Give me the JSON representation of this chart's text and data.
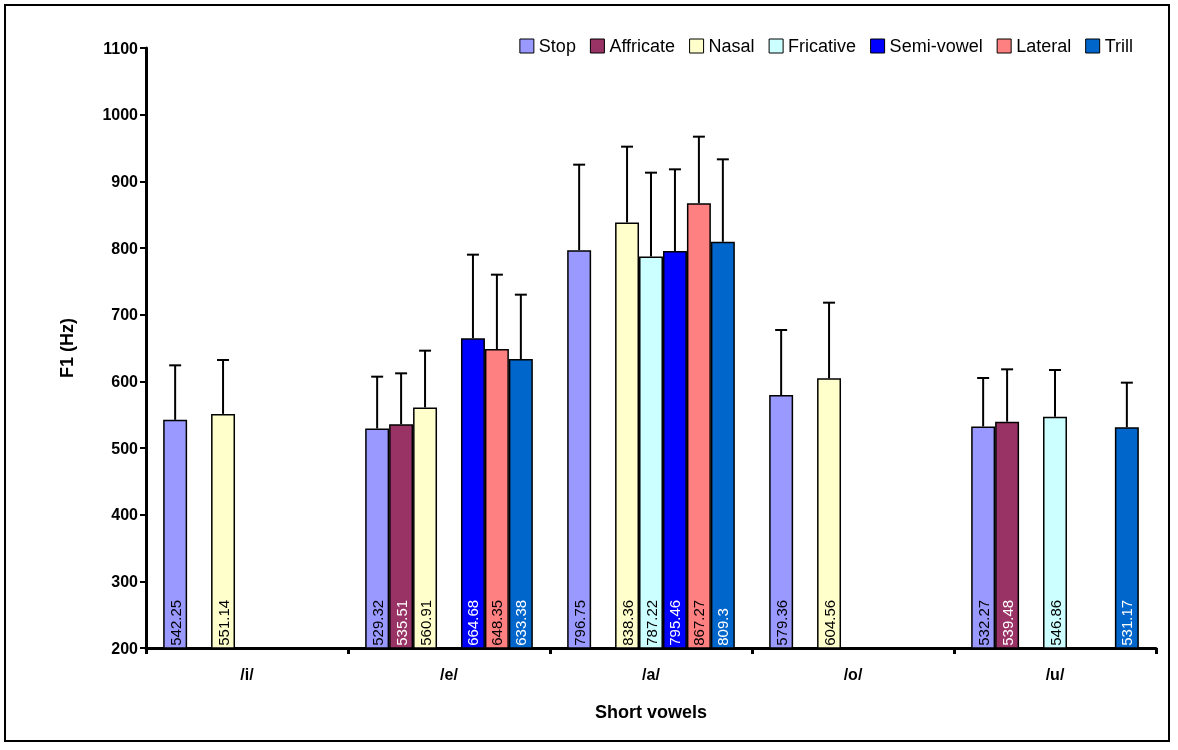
{
  "chart_data": {
    "type": "bar",
    "xlabel": "Short vowels",
    "ylabel": "F1 (Hz)",
    "categories": [
      "/i/",
      "/e/",
      "/a/",
      "/o/",
      "/u/"
    ],
    "ylim": [
      200,
      1100
    ],
    "yticks": [
      200,
      300,
      400,
      500,
      600,
      700,
      800,
      900,
      1000,
      1100
    ],
    "grid": false,
    "legend": "top right",
    "data_labels": true,
    "series": [
      {
        "name": "Stop",
        "color": "#9999ff",
        "values": [
          542.25,
          529.32,
          796.75,
          579.36,
          532.27
        ],
        "errors": [
          [
            542.25,
            624
          ],
          [
            529.32,
            607
          ],
          [
            796.75,
            925
          ],
          [
            579.36,
            677
          ],
          [
            532.27,
            605
          ]
        ]
      },
      {
        "name": "Affricate",
        "color": "#993366",
        "values": [
          null,
          535.51,
          null,
          null,
          539.48
        ],
        "errors": [
          null,
          [
            535.51,
            612
          ],
          null,
          null,
          [
            539.48,
            618
          ]
        ]
      },
      {
        "name": "Nasal",
        "color": "#ffffcc",
        "values": [
          551.14,
          560.91,
          838.36,
          604.56,
          null
        ],
        "errors": [
          [
            551.14,
            632
          ],
          [
            560.91,
            646
          ],
          [
            838.36,
            952
          ],
          [
            604.56,
            718
          ],
          null
        ]
      },
      {
        "name": "Fricative",
        "color": "#ccffff",
        "values": [
          null,
          null,
          787.22,
          null,
          546.86
        ],
        "errors": [
          null,
          null,
          [
            787.22,
            913
          ],
          null,
          [
            546.86,
            617
          ]
        ]
      },
      {
        "name": "Semi-vowel",
        "color": "#0000ff",
        "values": [
          null,
          664.68,
          795.46,
          null,
          null
        ],
        "errors": [
          null,
          [
            664.68,
            790
          ],
          [
            795.46,
            918
          ],
          null,
          null
        ]
      },
      {
        "name": "Lateral",
        "color": "#ff8080",
        "values": [
          null,
          648.35,
          867.27,
          null,
          null
        ],
        "errors": [
          null,
          [
            648.35,
            760
          ],
          [
            867.27,
            967
          ],
          null,
          null
        ]
      },
      {
        "name": "Trill",
        "color": "#0066cc",
        "values": [
          null,
          633.38,
          809.3,
          null,
          531.17
        ],
        "errors": [
          null,
          [
            633.38,
            730
          ],
          [
            809.3,
            933
          ],
          null,
          [
            531.17,
            598
          ]
        ]
      }
    ]
  }
}
